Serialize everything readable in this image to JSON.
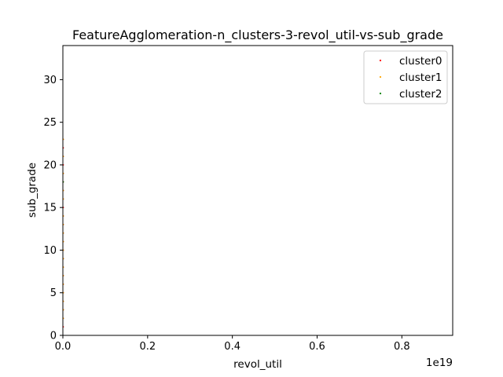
{
  "chart_data": {
    "type": "scatter",
    "title": "FeatureAgglomeration-n_clusters-3-revol_util-vs-sub_grade",
    "xlabel": "revol_util",
    "ylabel": "sub_grade",
    "x_offset_text": "1e19",
    "xlim": [
      0,
      0.92
    ],
    "ylim": [
      0,
      34
    ],
    "xticks": [
      {
        "value": 0.0,
        "label": "0.0"
      },
      {
        "value": 0.2,
        "label": "0.2"
      },
      {
        "value": 0.4,
        "label": "0.4"
      },
      {
        "value": 0.6,
        "label": "0.6"
      },
      {
        "value": 0.8,
        "label": "0.8"
      }
    ],
    "yticks": [
      {
        "value": 0,
        "label": "0"
      },
      {
        "value": 5,
        "label": "5"
      },
      {
        "value": 10,
        "label": "10"
      },
      {
        "value": 15,
        "label": "15"
      },
      {
        "value": 20,
        "label": "20"
      },
      {
        "value": 25,
        "label": "25"
      },
      {
        "value": 30,
        "label": "30"
      }
    ],
    "grid": false,
    "legend_position": "top-right",
    "series": [
      {
        "name": "cluster0",
        "color": "#ff0000",
        "points": [
          [
            0,
            1
          ],
          [
            0,
            2
          ],
          [
            0,
            3
          ],
          [
            0,
            4
          ],
          [
            0,
            5
          ],
          [
            0,
            6
          ],
          [
            0,
            7
          ],
          [
            0,
            8
          ],
          [
            0,
            9
          ],
          [
            0,
            10
          ],
          [
            0,
            11
          ],
          [
            0,
            12
          ],
          [
            0,
            13
          ],
          [
            0,
            14
          ],
          [
            0,
            15
          ],
          [
            0,
            16
          ],
          [
            0,
            17
          ],
          [
            0,
            18
          ],
          [
            0,
            19
          ],
          [
            0,
            20
          ],
          [
            0,
            21
          ],
          [
            0,
            22
          ],
          [
            0,
            23
          ]
        ]
      },
      {
        "name": "cluster1",
        "color": "#ffa500",
        "points": [
          [
            0,
            2
          ],
          [
            0,
            3
          ],
          [
            0,
            4
          ],
          [
            0,
            5
          ],
          [
            0,
            6
          ],
          [
            0,
            7
          ],
          [
            0,
            8
          ],
          [
            0,
            9
          ],
          [
            0,
            10
          ],
          [
            0,
            11
          ],
          [
            0,
            12
          ],
          [
            0,
            13
          ],
          [
            0,
            14
          ],
          [
            0,
            16
          ],
          [
            0,
            17
          ],
          [
            0,
            19
          ],
          [
            0,
            21
          ],
          [
            0,
            23
          ]
        ]
      },
      {
        "name": "cluster2",
        "color": "#008000",
        "points": [
          [
            0,
            18
          ]
        ]
      }
    ]
  }
}
